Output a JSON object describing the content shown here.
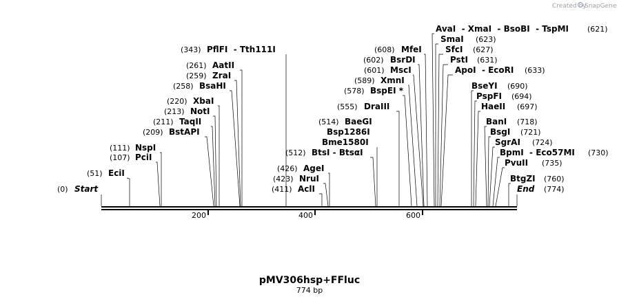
{
  "credit": {
    "prefix": "Created by",
    "brand": "SnapGene"
  },
  "plasmid": {
    "name": "pMV306hsp+FFluc",
    "length_label": "774 bp",
    "length": 774
  },
  "axis_ticks": [
    "200",
    "400",
    "600"
  ],
  "sites": [
    {
      "pos": "(0)",
      "name": "Start",
      "italic": true
    },
    {
      "pos": "(51)",
      "name": "EciI"
    },
    {
      "pos": "(107)",
      "name": "PciI"
    },
    {
      "pos": "(111)",
      "name": "NspI"
    },
    {
      "pos": "(209)",
      "name": "BstAPI"
    },
    {
      "pos": "(211)",
      "name": "TaqII"
    },
    {
      "pos": "(213)",
      "name": "NotI"
    },
    {
      "pos": "(220)",
      "name": "XbaI"
    },
    {
      "pos": "(258)",
      "name": "BsaHI"
    },
    {
      "pos": "(259)",
      "name": "ZraI"
    },
    {
      "pos": "(261)",
      "name": "AatII"
    },
    {
      "pos": "(343)",
      "name": "PflFI  - Tth111I"
    },
    {
      "pos": "(411)",
      "name": "AclI"
    },
    {
      "pos": "(423)",
      "name": "NruI"
    },
    {
      "pos": "(426)",
      "name": "AgeI"
    },
    {
      "pos": "(512)",
      "name": "BtsI - BtsαI"
    },
    {
      "pos": "",
      "name": "Bme1580I"
    },
    {
      "pos": "",
      "name": "Bsp1286I"
    },
    {
      "pos": "(514)",
      "name": "BaeGI"
    },
    {
      "pos": "(555)",
      "name": "DraIII"
    },
    {
      "pos": "(578)",
      "name": "BspEI *"
    },
    {
      "pos": "(589)",
      "name": "XmnI"
    },
    {
      "pos": "(601)",
      "name": "MscI"
    },
    {
      "pos": "(602)",
      "name": "BsrDI"
    },
    {
      "pos": "(608)",
      "name": "MfeI"
    },
    {
      "pos": "(621)",
      "name": "AvaI  - XmaI  - BsoBI  - TspMI"
    },
    {
      "pos": "(623)",
      "name": "SmaI"
    },
    {
      "pos": "(627)",
      "name": "SfcI"
    },
    {
      "pos": "(631)",
      "name": "PstI"
    },
    {
      "pos": "(633)",
      "name": "ApoI  - EcoRI"
    },
    {
      "pos": "(690)",
      "name": "BseYI"
    },
    {
      "pos": "(694)",
      "name": "PspFI"
    },
    {
      "pos": "(697)",
      "name": "HaeII"
    },
    {
      "pos": "(718)",
      "name": "BanI"
    },
    {
      "pos": "(721)",
      "name": "BsgI"
    },
    {
      "pos": "(724)",
      "name": "SgrAI"
    },
    {
      "pos": "(730)",
      "name": "BpmI  - Eco57MI"
    },
    {
      "pos": "(735)",
      "name": "PvuII"
    },
    {
      "pos": "(760)",
      "name": "BtgZI"
    },
    {
      "pos": "(774)",
      "name": "End",
      "italic": true
    }
  ]
}
